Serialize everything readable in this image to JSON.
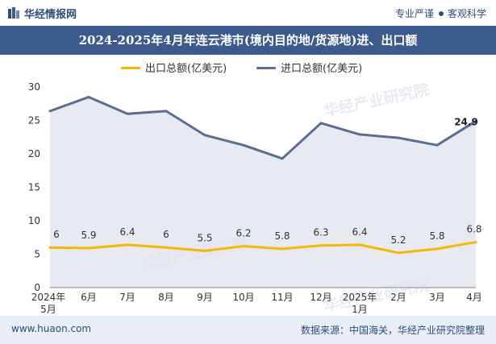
{
  "header": {
    "brand": "华经情报网",
    "tagline_left": "专业严谨",
    "tagline_right": "客观科学"
  },
  "watermark": "华经产业研究院",
  "footer": {
    "website": "www.huaon.com",
    "source": "数据来源：中国海关，华经产业研究院整理"
  },
  "colors": {
    "export": "#f5b800",
    "import": "#5a6e91",
    "header_bg": "#3c5a8c",
    "area_fill": "#dfe3ec"
  },
  "chart_data": {
    "type": "line",
    "title": "2024-2025年4月年连云港市(境内目的地/货源地)进、出口额",
    "categories": [
      "2024年\n5月",
      "6月",
      "7月",
      "8月",
      "9月",
      "10月",
      "11月",
      "12月",
      "2025年\n1月",
      "2月",
      "3月",
      "4月"
    ],
    "series": [
      {
        "name": "出口总额(亿美元)",
        "values": [
          6,
          5.9,
          6.4,
          6,
          5.5,
          6.2,
          5.8,
          6.3,
          6.4,
          5.2,
          5.8,
          6.8
        ],
        "labels": [
          "6",
          "5.9",
          "6.4",
          "6",
          "5.5",
          "6.2",
          "5.8",
          "6.3",
          "6.4",
          "5.2",
          "5.8",
          "6.8"
        ]
      },
      {
        "name": "进口总额(亿美元)",
        "values": [
          26.4,
          28.5,
          26.0,
          26.4,
          22.8,
          21.3,
          19.3,
          24.6,
          22.9,
          22.4,
          21.3,
          24.9
        ],
        "labels": [
          "",
          "",
          "",
          "",
          "",
          "",
          "",
          "",
          "",
          "",
          "",
          "24.9"
        ]
      }
    ],
    "yticks": [
      0,
      5,
      10,
      15,
      20,
      25,
      30
    ],
    "ylim": [
      0,
      30
    ],
    "legend": "top-center",
    "grid": false
  }
}
